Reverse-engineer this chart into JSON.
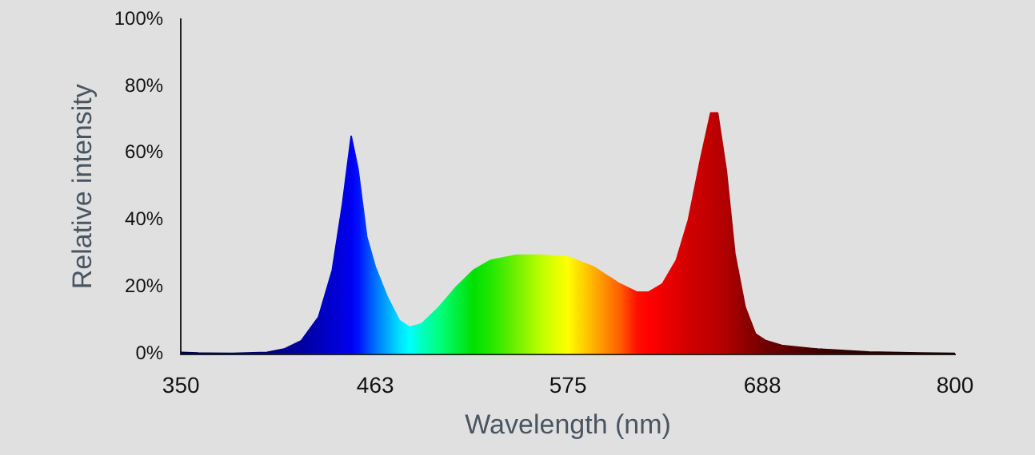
{
  "chart_data": {
    "type": "area",
    "xlabel": "Wavelength (nm)",
    "ylabel": "Relative intensity",
    "x": [
      350,
      360,
      380,
      400,
      410,
      420,
      430,
      438,
      444,
      449,
      453,
      458,
      463,
      470,
      477,
      483,
      490,
      500,
      510,
      520,
      530,
      545,
      560,
      575,
      590,
      605,
      615,
      622,
      630,
      638,
      645,
      652,
      658,
      662,
      667,
      672,
      678,
      684,
      690,
      700,
      720,
      750,
      780,
      800
    ],
    "series": [
      {
        "values": [
          0.5,
          0.3,
          0.2,
          0.5,
          1.5,
          4,
          11,
          25,
          45,
          65,
          55,
          35,
          26,
          17,
          10,
          8,
          9,
          14,
          20,
          25,
          28,
          29.5,
          29.5,
          29,
          26,
          21,
          18.5,
          18.5,
          21,
          28,
          40,
          58,
          72,
          72,
          55,
          30,
          14,
          6,
          4,
          2.5,
          1.5,
          0.6,
          0.3,
          0.2
        ],
        "colors": [
          "#000040",
          "#000050",
          "#000060",
          "#000070",
          "#000090",
          "#0000a0",
          "#0000b8",
          "#0000d0",
          "#0000e0",
          "#0000f0",
          "#0010ff",
          "#0040ff",
          "#0070ff",
          "#00a8ff",
          "#00e0ff",
          "#00ffff",
          "#00ffc0",
          "#00ff80",
          "#00f040",
          "#00e000",
          "#20e800",
          "#70f000",
          "#c0ff00",
          "#ffff00",
          "#ffb000",
          "#ff6000",
          "#ff1000",
          "#ff0000",
          "#f00000",
          "#e00000",
          "#d00000",
          "#c80000",
          "#c00000",
          "#b80000",
          "#b00000",
          "#a00000",
          "#900000",
          "#800000",
          "#700000",
          "#600000",
          "#400000",
          "#280000",
          "#180000",
          "#100000"
        ]
      }
    ],
    "xlim": [
      350,
      800
    ],
    "xticks": [
      350,
      463,
      575,
      688,
      800
    ],
    "ylim": [
      0,
      100
    ],
    "yticks": [
      {
        "value": 0,
        "label": "0%"
      },
      {
        "value": 20,
        "label": "20%"
      },
      {
        "value": 40,
        "label": "40%"
      },
      {
        "value": 60,
        "label": "60%"
      },
      {
        "value": 80,
        "label": "80%"
      },
      {
        "value": 100,
        "label": "100%"
      }
    ]
  }
}
